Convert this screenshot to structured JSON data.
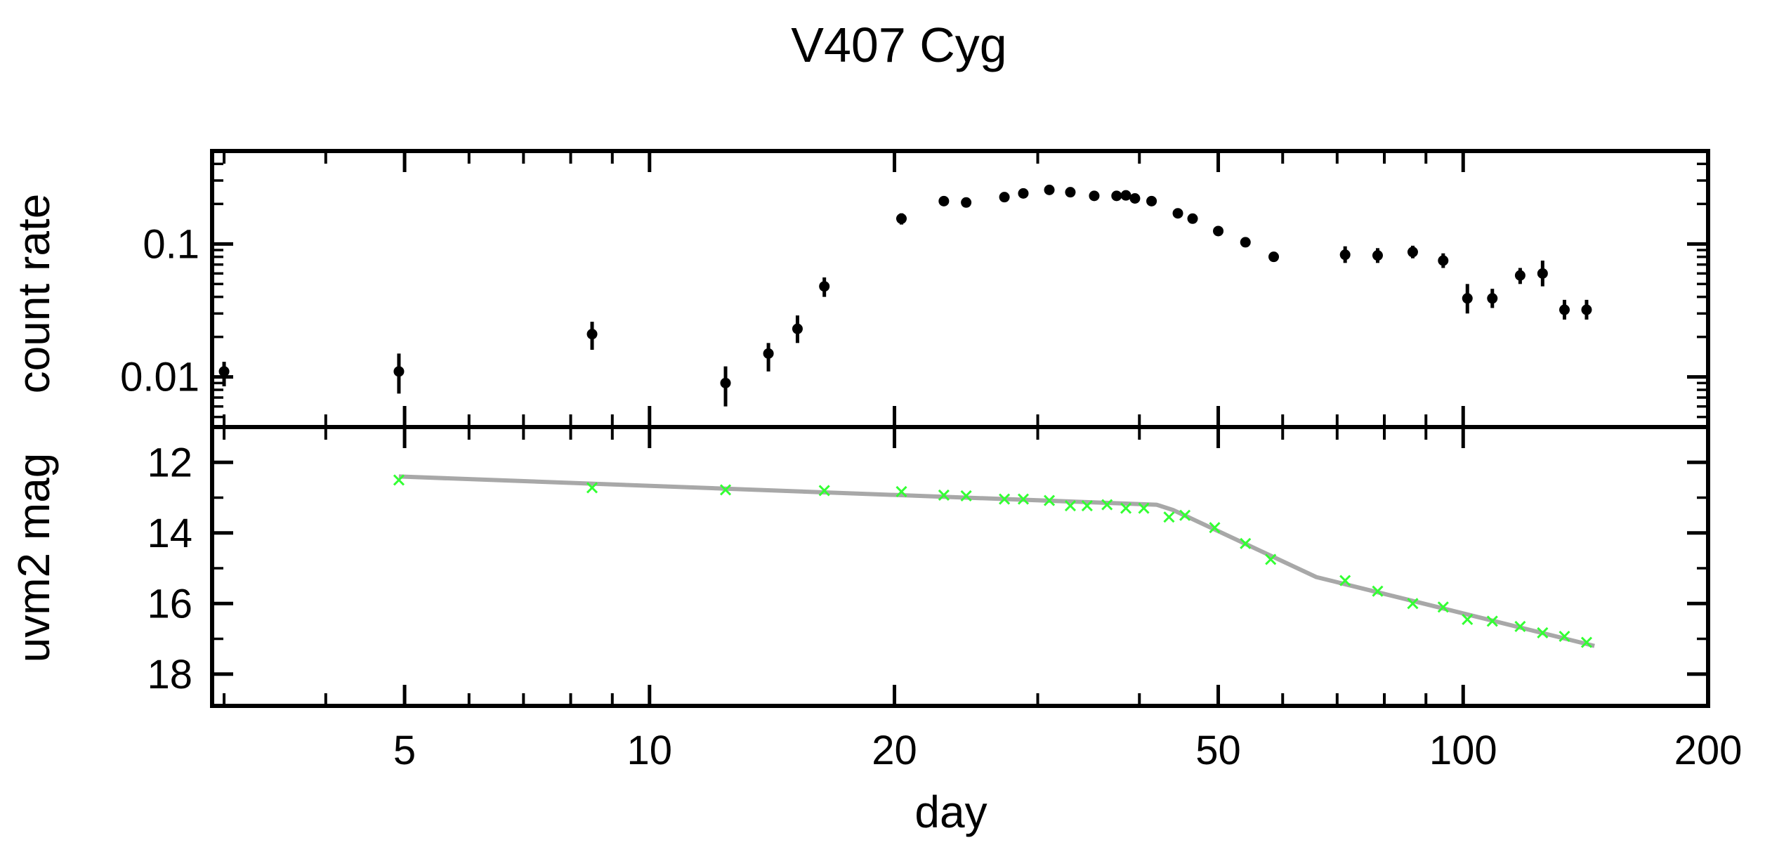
{
  "chart_data": {
    "type": "scatter",
    "title": "V407 Cyg",
    "xlabel": "day",
    "xscale": "log",
    "xlim": [
      2.9,
      200
    ],
    "xticks": [
      5,
      10,
      20,
      50,
      100,
      200
    ],
    "xtick_labels": [
      "5",
      "10",
      "20",
      "50",
      "100",
      "200"
    ],
    "panels": [
      {
        "name": "top",
        "ylabel": "count rate",
        "yscale": "log",
        "ylim": [
          0.0042,
          0.5
        ],
        "yticks": [
          0.01,
          0.1
        ],
        "ytick_labels": [
          "0.01",
          "0.1"
        ],
        "series": [
          {
            "name": "count rate",
            "marker": "dot",
            "color": "#000000",
            "points": [
              {
                "x": 3.0,
                "y": 0.011,
                "err": [
                  0.0085,
                  0.013
                ]
              },
              {
                "x": 4.92,
                "y": 0.011,
                "err": [
                  0.0075,
                  0.015
                ]
              },
              {
                "x": 8.5,
                "y": 0.021,
                "err": [
                  0.016,
                  0.026
                ]
              },
              {
                "x": 12.4,
                "y": 0.009,
                "err": [
                  0.006,
                  0.012
                ]
              },
              {
                "x": 14.0,
                "y": 0.015,
                "err": [
                  0.011,
                  0.018
                ]
              },
              {
                "x": 15.2,
                "y": 0.023,
                "err": [
                  0.018,
                  0.029
                ]
              },
              {
                "x": 16.4,
                "y": 0.048,
                "err": [
                  0.04,
                  0.056
                ]
              },
              {
                "x": 20.4,
                "y": 0.155,
                "err": [
                  0.14,
                  0.17
                ]
              },
              {
                "x": 23.0,
                "y": 0.21,
                "err": [
                  0.2,
                  0.22
                ]
              },
              {
                "x": 24.5,
                "y": 0.205,
                "err": [
                  0.195,
                  0.215
                ]
              },
              {
                "x": 27.3,
                "y": 0.225,
                "err": [
                  0.215,
                  0.235
                ]
              },
              {
                "x": 28.8,
                "y": 0.24,
                "err": [
                  0.23,
                  0.25
                ]
              },
              {
                "x": 31.0,
                "y": 0.255,
                "err": [
                  0.245,
                  0.265
                ]
              },
              {
                "x": 32.9,
                "y": 0.245,
                "err": [
                  0.235,
                  0.255
                ]
              },
              {
                "x": 35.2,
                "y": 0.23,
                "err": [
                  0.22,
                  0.24
                ]
              },
              {
                "x": 37.5,
                "y": 0.23,
                "err": [
                  0.22,
                  0.24
                ]
              },
              {
                "x": 38.5,
                "y": 0.232,
                "err": [
                  0.222,
                  0.242
                ]
              },
              {
                "x": 39.5,
                "y": 0.22,
                "err": [
                  0.21,
                  0.23
                ]
              },
              {
                "x": 41.4,
                "y": 0.21,
                "err": [
                  0.2,
                  0.22
                ]
              },
              {
                "x": 44.6,
                "y": 0.17,
                "err": [
                  0.16,
                  0.18
                ]
              },
              {
                "x": 46.5,
                "y": 0.155,
                "err": [
                  0.145,
                  0.165
                ]
              },
              {
                "x": 50.0,
                "y": 0.125,
                "err": [
                  0.118,
                  0.132
                ]
              },
              {
                "x": 54.0,
                "y": 0.103,
                "err": [
                  0.097,
                  0.109
                ]
              },
              {
                "x": 58.5,
                "y": 0.08,
                "err": [
                  0.074,
                  0.086
                ]
              },
              {
                "x": 71.6,
                "y": 0.083,
                "err": [
                  0.072,
                  0.096
                ]
              },
              {
                "x": 78.5,
                "y": 0.082,
                "err": [
                  0.072,
                  0.093
                ]
              },
              {
                "x": 86.7,
                "y": 0.087,
                "err": [
                  0.078,
                  0.097
                ]
              },
              {
                "x": 94.5,
                "y": 0.075,
                "err": [
                  0.066,
                  0.085
                ]
              },
              {
                "x": 101.2,
                "y": 0.039,
                "err": [
                  0.03,
                  0.05
                ]
              },
              {
                "x": 108.6,
                "y": 0.039,
                "err": [
                  0.033,
                  0.046
                ]
              },
              {
                "x": 117.5,
                "y": 0.058,
                "err": [
                  0.05,
                  0.066
                ]
              },
              {
                "x": 125.2,
                "y": 0.06,
                "err": [
                  0.048,
                  0.075
                ]
              },
              {
                "x": 133.2,
                "y": 0.032,
                "err": [
                  0.027,
                  0.038
                ]
              },
              {
                "x": 141.8,
                "y": 0.032,
                "err": [
                  0.027,
                  0.038
                ]
              }
            ]
          }
        ]
      },
      {
        "name": "bottom",
        "ylabel": "uvm2 mag",
        "yscale": "linear",
        "ylim": [
          18.9,
          11.0
        ],
        "yticks": [
          12,
          14,
          16,
          18
        ],
        "ytick_labels": [
          "12",
          "14",
          "16",
          "18"
        ],
        "minor_yticks": [
          11,
          13,
          15,
          17
        ],
        "series": [
          {
            "name": "uvm2",
            "marker": "x",
            "color": "#33ff33",
            "points": [
              {
                "x": 4.92,
                "y": 12.5
              },
              {
                "x": 8.5,
                "y": 12.72
              },
              {
                "x": 12.4,
                "y": 12.78
              },
              {
                "x": 16.4,
                "y": 12.8
              },
              {
                "x": 20.4,
                "y": 12.83
              },
              {
                "x": 23.0,
                "y": 12.93
              },
              {
                "x": 24.5,
                "y": 12.95
              },
              {
                "x": 27.3,
                "y": 13.04
              },
              {
                "x": 28.8,
                "y": 13.04
              },
              {
                "x": 31.0,
                "y": 13.08
              },
              {
                "x": 32.9,
                "y": 13.23
              },
              {
                "x": 34.5,
                "y": 13.23
              },
              {
                "x": 36.5,
                "y": 13.2
              },
              {
                "x": 38.5,
                "y": 13.3
              },
              {
                "x": 40.5,
                "y": 13.3
              },
              {
                "x": 43.5,
                "y": 13.55
              },
              {
                "x": 45.5,
                "y": 13.5
              },
              {
                "x": 49.5,
                "y": 13.85
              },
              {
                "x": 54.0,
                "y": 14.3
              },
              {
                "x": 58.0,
                "y": 14.75
              },
              {
                "x": 71.6,
                "y": 15.35
              },
              {
                "x": 78.5,
                "y": 15.65
              },
              {
                "x": 86.7,
                "y": 16.0
              },
              {
                "x": 94.5,
                "y": 16.1
              },
              {
                "x": 101.2,
                "y": 16.45
              },
              {
                "x": 108.6,
                "y": 16.5
              },
              {
                "x": 117.5,
                "y": 16.65
              },
              {
                "x": 125.2,
                "y": 16.83
              },
              {
                "x": 133.2,
                "y": 16.93
              },
              {
                "x": 141.8,
                "y": 17.1
              }
            ]
          },
          {
            "name": "model",
            "type": "line",
            "color": "#a8a8a8",
            "points": [
              {
                "x": 4.92,
                "y": 12.4
              },
              {
                "x": 42.0,
                "y": 13.2
              },
              {
                "x": 44.0,
                "y": 13.35
              },
              {
                "x": 66.0,
                "y": 15.25
              },
              {
                "x": 145.0,
                "y": 17.2
              }
            ]
          }
        ]
      }
    ]
  }
}
